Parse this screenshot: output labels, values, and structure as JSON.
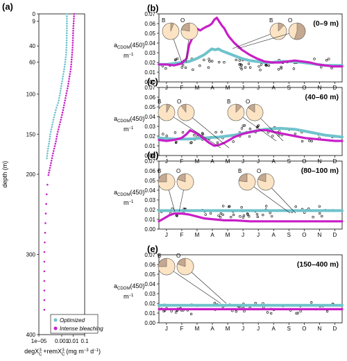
{
  "colors": {
    "optimized": "#6fc3cc",
    "bleaching": "#c81ec8",
    "pie_fill": "#fbe3c3",
    "pie_slice": "#c4a88f",
    "points": "#000000"
  },
  "panel_a": {
    "label": "(a)",
    "ylabel": "depth (m)",
    "xlabel_line1": "degX",
    "xlabel_sub": "C",
    "xlabel_sup": "3",
    "xlabel_mid": " +remX",
    "xlabel_sub2": "C",
    "xlabel_sup2": "3",
    "xlabel_units": " (mg m",
    "xlabel_units_sup": "−3",
    "xlabel_units2": " d",
    "xlabel_units_sup2": "−1",
    "xlabel_units3": ")",
    "x_ticks": [
      "1e−05",
      "0.001",
      "0.01",
      "0.1"
    ],
    "y_ticks": [
      "0",
      "9",
      "40",
      "60",
      "100",
      "150",
      "200",
      "300",
      "400"
    ],
    "legend": [
      "Optimized",
      "Intense bleaching"
    ]
  },
  "month_ticks": [
    "J",
    "F",
    "M",
    "A",
    "M",
    "J",
    "J",
    "A",
    "S",
    "O",
    "N",
    "D"
  ],
  "y_ticks": [
    "0.00",
    "0.01",
    "0.02",
    "0.03",
    "0.04",
    "0.05",
    "0.06",
    "0.07"
  ],
  "ylabel_main": "a",
  "ylabel_sub": "CDOM",
  "ylabel_rest": "(450)",
  "ylabel_unit": "m",
  "ylabel_unit_sup": "−1",
  "pie_labels": [
    "B",
    "O"
  ],
  "panels": [
    {
      "label": "(b)",
      "depth": "(0–9 m)"
    },
    {
      "label": "(c)",
      "depth": "(40–60 m)"
    },
    {
      "label": "(d)",
      "depth": "(80–100 m)"
    },
    {
      "label": "(e)",
      "depth": "(150–400 m)"
    }
  ],
  "chart_data": [
    {
      "type": "scatter",
      "title": "(a)",
      "xlabel": "degX_C^3+remX_C^3 (mg m^-3 d^-1)",
      "ylabel": "depth (m)",
      "x_scale": "log",
      "xlim": [
        1e-05,
        0.1
      ],
      "ylim": [
        400,
        0
      ],
      "series": [
        {
          "name": "Optimized",
          "x": [
            0.0028,
            0.0028,
            0.0028,
            0.0028,
            0.0027,
            0.0026,
            0.0024,
            0.002,
            0.0016,
            0.0012,
            0.0009,
            0.0007,
            0.0005,
            0.0003,
            0.0002,
            0.00014,
            0.0001,
            8e-05,
            6e-05,
            5e-05
          ],
          "y": [
            0,
            5,
            10,
            20,
            30,
            40,
            50,
            60,
            70,
            80,
            90,
            100,
            110,
            120,
            130,
            140,
            150,
            160,
            170,
            180
          ]
        },
        {
          "name": "Intense bleaching",
          "x": [
            0.012,
            0.011,
            0.01,
            0.0095,
            0.009,
            0.008,
            0.007,
            0.006,
            0.0045,
            0.0035,
            0.0025,
            0.0018,
            0.0013,
            0.0009,
            0.0006,
            0.0004,
            0.0003,
            0.0002,
            0.00014,
            0.0001,
            7e-05,
            5e-05,
            4e-05,
            3e-05,
            3e-05,
            3e-05
          ],
          "y": [
            0,
            10,
            20,
            30,
            40,
            50,
            60,
            70,
            80,
            90,
            100,
            110,
            120,
            130,
            140,
            150,
            160,
            170,
            180,
            190,
            200,
            220,
            250,
            300,
            350,
            380
          ]
        }
      ]
    },
    {
      "type": "line",
      "title": "(b) (0–9 m)",
      "ylabel": "aCDOM(450) m^-1",
      "x": [
        "J",
        "F",
        "M",
        "A",
        "M",
        "J",
        "J",
        "A",
        "S",
        "O",
        "N",
        "D"
      ],
      "ylim": [
        0,
        0.07
      ],
      "series": [
        {
          "x": [
            0,
            15,
            30,
            45,
            60,
            75,
            90,
            100,
            105,
            112,
            118,
            125,
            135,
            150,
            165,
            180,
            195,
            210,
            225,
            240,
            255,
            270,
            285,
            300,
            315,
            330,
            345,
            364
          ],
          "values": [
            0.018,
            0.018,
            0.019,
            0.02,
            0.021,
            0.024,
            0.028,
            0.032,
            0.034,
            0.033,
            0.034,
            0.032,
            0.03,
            0.027,
            0.024,
            0.022,
            0.021,
            0.02,
            0.02,
            0.021,
            0.021,
            0.021,
            0.02,
            0.019,
            0.018,
            0.017,
            0.017,
            0.017
          ]
        },
        {
          "x": [
            0,
            15,
            30,
            45,
            55,
            60,
            68,
            75,
            82,
            88,
            95,
            100,
            105,
            110,
            115,
            120,
            125,
            130,
            135,
            140,
            150,
            165,
            180,
            195,
            210,
            225,
            240,
            255,
            270,
            285,
            300,
            315,
            330,
            345,
            364
          ],
          "values": [
            0.018,
            0.018,
            0.017,
            0.019,
            0.024,
            0.038,
            0.047,
            0.055,
            0.053,
            0.055,
            0.057,
            0.058,
            0.06,
            0.064,
            0.066,
            0.062,
            0.058,
            0.055,
            0.05,
            0.046,
            0.04,
            0.033,
            0.028,
            0.024,
            0.021,
            0.02,
            0.02,
            0.021,
            0.022,
            0.021,
            0.02,
            0.018,
            0.017,
            0.016,
            0.016
          ]
        }
      ]
    },
    {
      "type": "line",
      "title": "(c) (40–60 m)",
      "ylabel": "aCDOM(450) m^-1",
      "x": [
        "J",
        "F",
        "M",
        "A",
        "M",
        "J",
        "J",
        "A",
        "S",
        "O",
        "N",
        "D"
      ],
      "ylim": [
        0,
        0.07
      ],
      "series": [
        {
          "x": [
            0,
            30,
            60,
            90,
            120,
            150,
            180,
            210,
            240,
            270,
            300,
            330,
            364
          ],
          "values": [
            0.018,
            0.017,
            0.017,
            0.018,
            0.019,
            0.021,
            0.024,
            0.027,
            0.028,
            0.027,
            0.024,
            0.021,
            0.019
          ]
        },
        {
          "x": [
            0,
            15,
            30,
            45,
            55,
            62,
            70,
            80,
            90,
            100,
            110,
            120,
            130,
            140,
            150,
            165,
            180,
            200,
            215,
            230,
            250,
            270,
            290,
            310,
            330,
            350,
            364
          ],
          "values": [
            0.016,
            0.015,
            0.016,
            0.018,
            0.022,
            0.026,
            0.024,
            0.021,
            0.017,
            0.013,
            0.01,
            0.011,
            0.013,
            0.016,
            0.019,
            0.022,
            0.024,
            0.026,
            0.026,
            0.024,
            0.022,
            0.02,
            0.018,
            0.017,
            0.016,
            0.015,
            0.015
          ]
        }
      ]
    },
    {
      "type": "line",
      "title": "(d) (80–100 m)",
      "ylabel": "aCDOM(450) m^-1",
      "x": [
        "J",
        "F",
        "M",
        "A",
        "M",
        "J",
        "J",
        "A",
        "S",
        "O",
        "N",
        "D"
      ],
      "ylim": [
        0,
        0.07
      ],
      "series": [
        {
          "x": [
            0,
            364
          ],
          "values": [
            0.019,
            0.019
          ]
        },
        {
          "x": [
            0,
            10,
            20,
            30,
            45,
            60,
            75,
            90,
            110,
            130,
            150,
            180,
            210,
            240,
            270,
            300,
            330,
            364
          ],
          "values": [
            0.008,
            0.011,
            0.014,
            0.016,
            0.016,
            0.015,
            0.013,
            0.011,
            0.01,
            0.009,
            0.009,
            0.008,
            0.008,
            0.008,
            0.008,
            0.008,
            0.008,
            0.008
          ]
        }
      ]
    },
    {
      "type": "line",
      "title": "(e) (150–400 m)",
      "ylabel": "aCDOM(450) m^-1",
      "x": [
        "J",
        "F",
        "M",
        "A",
        "M",
        "J",
        "J",
        "A",
        "S",
        "O",
        "N",
        "D"
      ],
      "ylim": [
        0,
        0.07
      ],
      "series": [
        {
          "x": [
            0,
            364
          ],
          "values": [
            0.018,
            0.018
          ]
        },
        {
          "x": [
            0,
            364
          ],
          "values": [
            0.014,
            0.014
          ]
        }
      ]
    }
  ]
}
